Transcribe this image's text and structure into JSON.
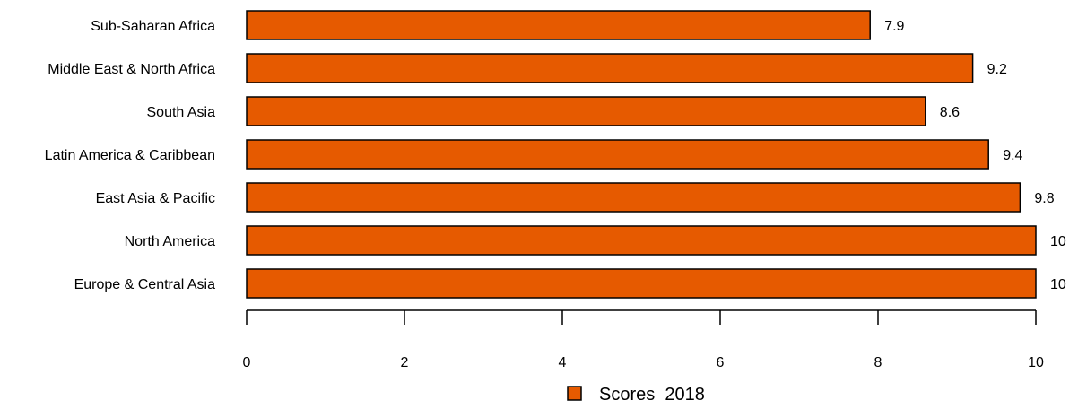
{
  "chart_data": {
    "type": "bar",
    "orientation": "horizontal",
    "categories": [
      "Sub-Saharan Africa",
      "Middle East & North Africa",
      "South Asia",
      "Latin America & Caribbean",
      "East Asia & Pacific",
      "North America",
      "Europe & Central Asia"
    ],
    "values": [
      7.9,
      9.2,
      8.6,
      9.4,
      9.8,
      10,
      10
    ],
    "value_labels": [
      "7.9",
      "9.2",
      "8.6",
      "9.4",
      "9.8",
      "10",
      "10"
    ],
    "series": [
      {
        "name": "Scores  2018",
        "color": "#E65A00"
      }
    ],
    "xlim": [
      0,
      10
    ],
    "xticks": [
      "0",
      "2",
      "4",
      "6",
      "8",
      "10"
    ],
    "title": "",
    "xlabel": "",
    "ylabel": "",
    "grid": false,
    "legend_position": "bottom-center",
    "bar_color": "#E65A00",
    "bar_edge_color": "#000000"
  }
}
